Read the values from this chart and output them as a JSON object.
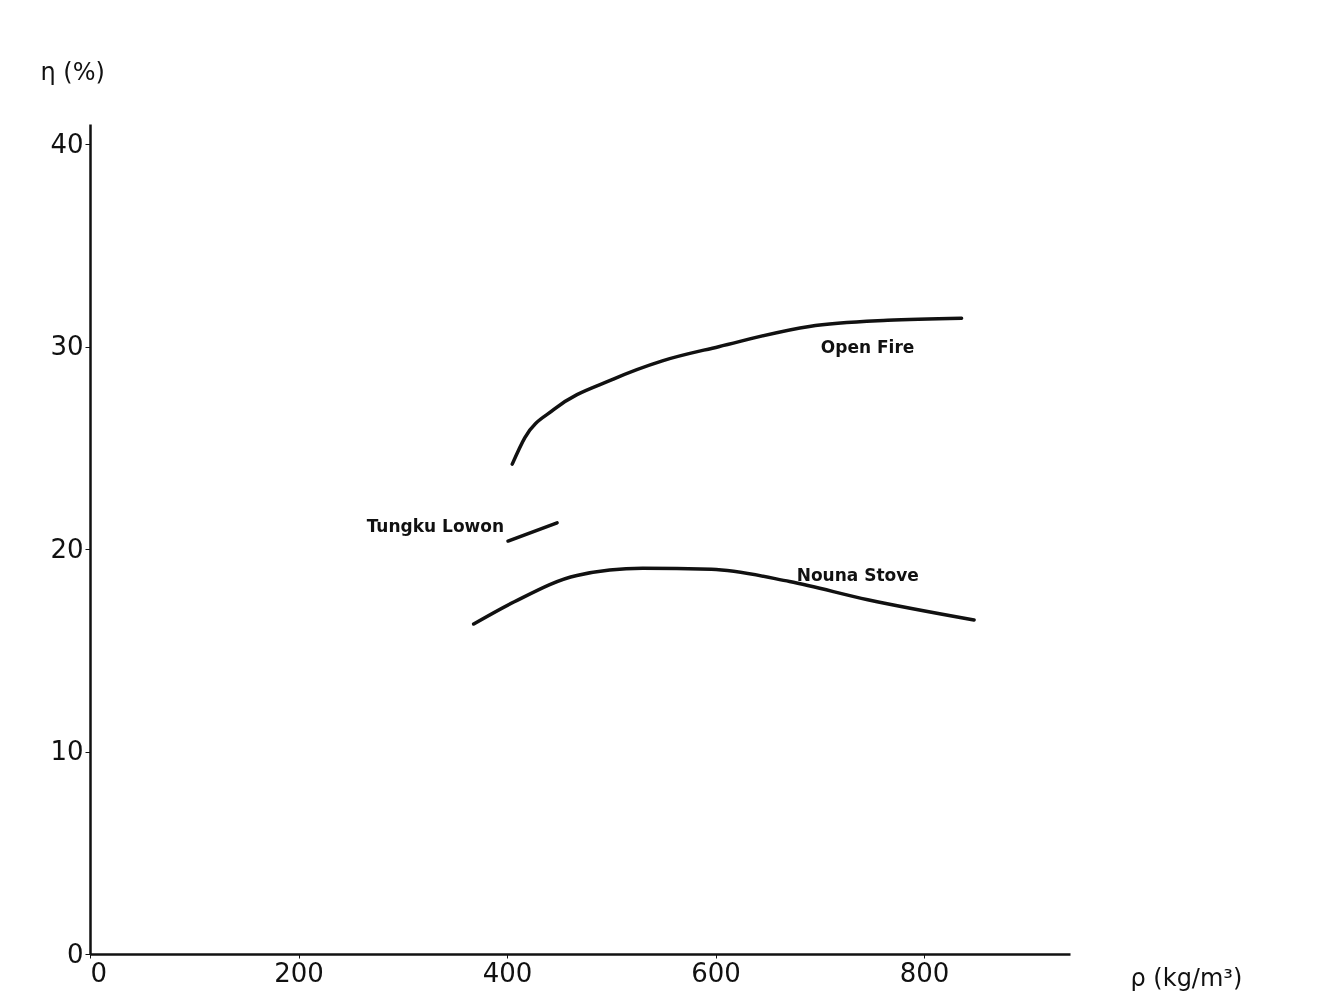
{
  "chart_data": {
    "type": "line",
    "xlabel": "ρ (kg/m³)",
    "ylabel": "η (%)",
    "xlim": [
      0,
      940
    ],
    "ylim": [
      0,
      41
    ],
    "xticks": [
      0,
      200,
      400,
      600,
      800
    ],
    "yticks": [
      0,
      10,
      20,
      30,
      40
    ],
    "grid": false,
    "legend": false,
    "marker": "none",
    "line_style": "solid",
    "series": [
      {
        "name": "Open Fire",
        "color": "#111111",
        "x": [
          405,
          417,
          445,
          502,
          549,
          603,
          690,
          765,
          836
        ],
        "values": [
          24.2,
          25.5,
          26.9,
          28.4,
          29.3,
          30.0,
          31.0,
          31.3,
          31.4
        ]
      },
      {
        "name": "Tungku Lowon",
        "color": "#111111",
        "x": [
          401,
          448
        ],
        "values": [
          20.4,
          21.3
        ]
      },
      {
        "name": "Nouna Stove",
        "color": "#111111",
        "x": [
          368,
          407,
          467,
          530,
          596,
          671,
          746,
          848
        ],
        "values": [
          16.3,
          17.4,
          18.7,
          19.05,
          19.0,
          18.4,
          17.5,
          16.5
        ]
      }
    ]
  }
}
